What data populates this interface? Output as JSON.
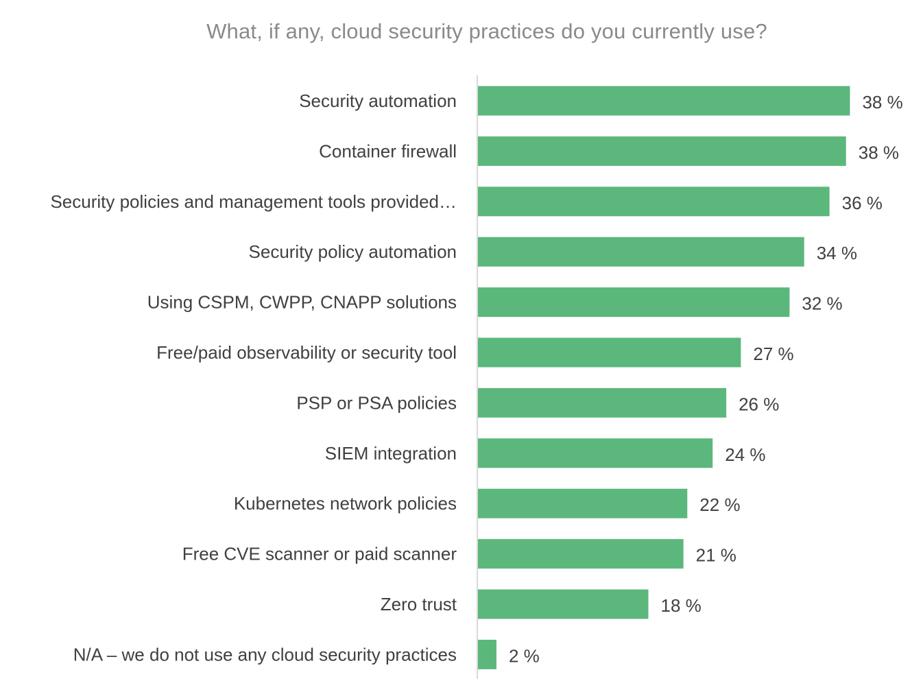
{
  "chart_data": {
    "type": "bar",
    "orientation": "horizontal",
    "title": "What, if any, cloud security practices do you currently use?",
    "categories": [
      "Security automation",
      "Container firewall",
      "Security policies and management tools provided…",
      "Security policy automation",
      "Using CSPM, CWPP, CNAPP solutions",
      "Free/paid observability or security tool",
      "PSP or PSA policies",
      "SIEM integration",
      "Kubernetes network policies",
      "Free CVE scanner or paid scanner",
      "Zero trust",
      "N/A – we do not use any cloud security practices"
    ],
    "values": [
      38.2,
      37.8,
      36.1,
      33.5,
      32.0,
      27.0,
      25.5,
      24.1,
      21.5,
      21.1,
      17.5,
      1.9
    ],
    "data_labels": [
      "38 %",
      "38 %",
      "36 %",
      "34 %",
      "32 %",
      "27 %",
      "26 %",
      "24 %",
      "22 %",
      "21 %",
      "18 %",
      "2 %"
    ],
    "xlim": [
      0,
      42
    ],
    "grid": false,
    "legend": "none",
    "bar_color": "#5cb77c",
    "axis_color": "#d9d9d9"
  }
}
